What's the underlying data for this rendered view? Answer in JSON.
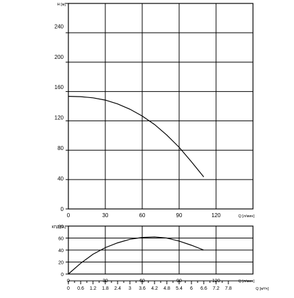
{
  "chart_data": [
    {
      "type": "line",
      "ylabel": "H [м]",
      "xlabel": "Q [л/мин]",
      "xlim": [
        0,
        150
      ],
      "ylim": [
        0,
        270
      ],
      "xticks": [
        "0",
        "30",
        "60",
        "90",
        "120"
      ],
      "yticks": [
        "0",
        "40",
        "80",
        "120",
        "160",
        "200",
        "240"
      ],
      "grid": true,
      "series": [
        {
          "x": [
            0,
            10,
            20,
            30,
            40,
            50,
            60,
            70,
            80,
            90,
            100,
            110
          ],
          "values": [
            148,
            147.5,
            146,
            143,
            138,
            131,
            122,
            111,
            97,
            81,
            62,
            42
          ]
        }
      ]
    },
    {
      "type": "line",
      "ylabel": "КПД [%]",
      "xlabel": "Q [л/мин]",
      "xlim": [
        0,
        150
      ],
      "ylim": [
        0,
        80
      ],
      "xticks": [
        "0",
        "30",
        "60",
        "90",
        "120"
      ],
      "yticks": [
        "0",
        "20",
        "40",
        "60",
        "80"
      ],
      "grid": true,
      "series": [
        {
          "x": [
            0,
            10,
            20,
            30,
            40,
            50,
            60,
            70,
            80,
            90,
            100,
            110
          ],
          "values": [
            0,
            18,
            33,
            44,
            52,
            58,
            61,
            62,
            60,
            55,
            48,
            40
          ]
        }
      ]
    }
  ],
  "secondary_axis": {
    "label": "Q [м³/ч]",
    "ticks": [
      "0",
      "0.6",
      "1.2",
      "1.8",
      "2.4",
      "3",
      "3.6",
      "4.2",
      "4.8",
      "5.4",
      "6",
      "6.6",
      "7.2",
      "7.8"
    ]
  },
  "colors": {
    "line": "#000000",
    "grid": "#000000",
    "background": "#ffffff"
  }
}
